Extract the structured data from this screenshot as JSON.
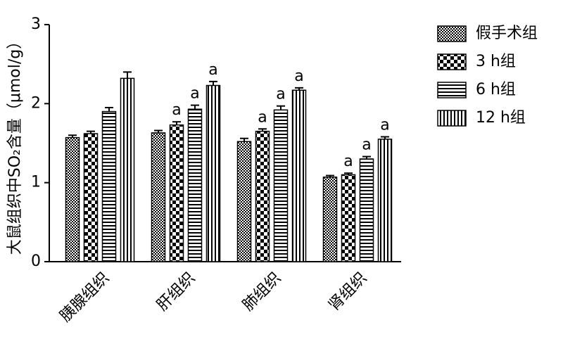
{
  "chart_data": {
    "type": "bar",
    "ylabel": "大鼠组织中SO₂含量（μmol/g）",
    "categories": [
      "胰腺组织",
      "肝组织",
      "肺组织",
      "肾组织"
    ],
    "series": [
      {
        "name": "假手术组",
        "color": "#000000",
        "pattern": "fine-checker",
        "values": [
          1.57,
          1.63,
          1.52,
          1.07
        ],
        "errors": [
          0.03,
          0.03,
          0.04,
          0.02
        ],
        "labels": [
          null,
          null,
          null,
          null
        ]
      },
      {
        "name": "3 h组",
        "color": "#000000",
        "pattern": "coarse-checker",
        "values": [
          1.62,
          1.73,
          1.65,
          1.1
        ],
        "errors": [
          0.03,
          0.04,
          0.03,
          0.02
        ],
        "labels": [
          null,
          "a",
          "a",
          "a"
        ]
      },
      {
        "name": "6 h组",
        "color": "#000000",
        "pattern": "horizontal-stripes",
        "values": [
          1.9,
          1.93,
          1.92,
          1.3
        ],
        "errors": [
          0.05,
          0.05,
          0.05,
          0.03
        ],
        "labels": [
          null,
          "a",
          "a",
          "a"
        ]
      },
      {
        "name": "12 h组",
        "color": "#000000",
        "pattern": "vertical-stripes",
        "values": [
          2.32,
          2.23,
          2.17,
          1.55
        ],
        "errors": [
          0.08,
          0.05,
          0.03,
          0.03
        ],
        "labels": [
          null,
          "a",
          "a",
          "a"
        ]
      }
    ],
    "ylim": [
      0,
      3
    ],
    "yticks": [
      0,
      1,
      2,
      3
    ],
    "grid": false,
    "legend": "right"
  }
}
